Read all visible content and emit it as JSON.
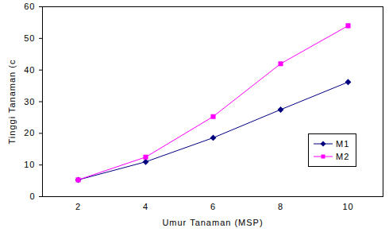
{
  "chart_data": {
    "type": "line",
    "xlabel": "Umur Tanaman (MSP)",
    "ylabel": "Tinggi Tanaman (c",
    "categories": [
      "2",
      "4",
      "6",
      "8",
      "10"
    ],
    "series": [
      {
        "name": "M1",
        "color": "#000080",
        "marker": "diamond",
        "line_style": "solid",
        "values": [
          5.3,
          11,
          18.6,
          27.5,
          36.2
        ]
      },
      {
        "name": "M2",
        "color": "#ff00ff",
        "marker": "square",
        "line_style": "solid",
        "values": [
          5.3,
          12.5,
          25.3,
          42,
          54
        ]
      }
    ],
    "ylim": [
      0,
      60
    ],
    "yticks": [
      0,
      10,
      20,
      30,
      40,
      50,
      60
    ],
    "grid": false,
    "legend": "right"
  }
}
